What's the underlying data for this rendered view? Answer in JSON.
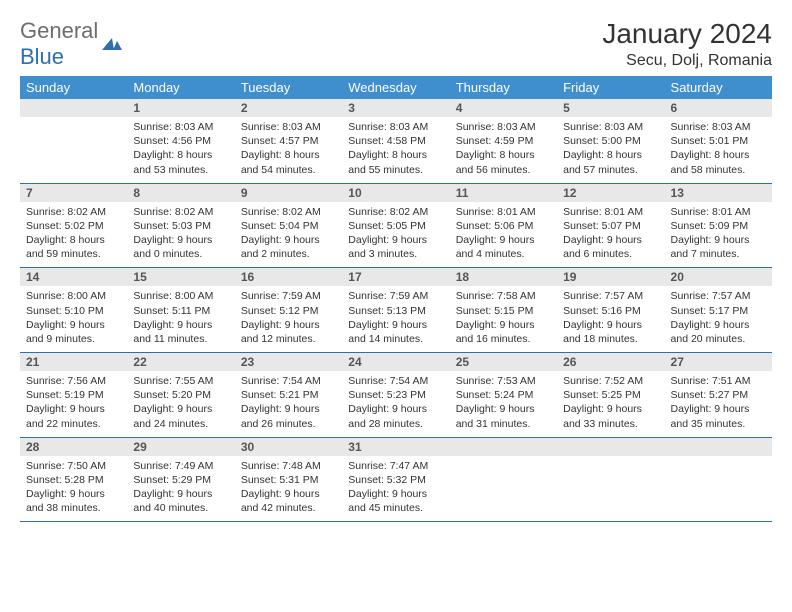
{
  "logo": {
    "text_part1": "General",
    "text_part2": "Blue",
    "text_color_1": "#6d6d6d",
    "text_color_2": "#2f6fb0",
    "icon_fill": "#2f6fb0"
  },
  "title": {
    "month_year": "January 2024",
    "location": "Secu, Dolj, Romania",
    "title_fontsize": 28,
    "title_color": "#333333",
    "location_fontsize": 16
  },
  "calendar": {
    "header_bg": "#3f8fcf",
    "header_fg": "#ffffff",
    "daynum_bg": "#e8e8e8",
    "daynum_fg": "#555555",
    "rule_color": "#2f6fb0",
    "body_fontsize": 10.5,
    "day_names": [
      "Sunday",
      "Monday",
      "Tuesday",
      "Wednesday",
      "Thursday",
      "Friday",
      "Saturday"
    ],
    "weeks": [
      [
        {
          "num": "",
          "lines": [
            "",
            "",
            "",
            ""
          ]
        },
        {
          "num": "1",
          "lines": [
            "Sunrise: 8:03 AM",
            "Sunset: 4:56 PM",
            "Daylight: 8 hours",
            "and 53 minutes."
          ]
        },
        {
          "num": "2",
          "lines": [
            "Sunrise: 8:03 AM",
            "Sunset: 4:57 PM",
            "Daylight: 8 hours",
            "and 54 minutes."
          ]
        },
        {
          "num": "3",
          "lines": [
            "Sunrise: 8:03 AM",
            "Sunset: 4:58 PM",
            "Daylight: 8 hours",
            "and 55 minutes."
          ]
        },
        {
          "num": "4",
          "lines": [
            "Sunrise: 8:03 AM",
            "Sunset: 4:59 PM",
            "Daylight: 8 hours",
            "and 56 minutes."
          ]
        },
        {
          "num": "5",
          "lines": [
            "Sunrise: 8:03 AM",
            "Sunset: 5:00 PM",
            "Daylight: 8 hours",
            "and 57 minutes."
          ]
        },
        {
          "num": "6",
          "lines": [
            "Sunrise: 8:03 AM",
            "Sunset: 5:01 PM",
            "Daylight: 8 hours",
            "and 58 minutes."
          ]
        }
      ],
      [
        {
          "num": "7",
          "lines": [
            "Sunrise: 8:02 AM",
            "Sunset: 5:02 PM",
            "Daylight: 8 hours",
            "and 59 minutes."
          ]
        },
        {
          "num": "8",
          "lines": [
            "Sunrise: 8:02 AM",
            "Sunset: 5:03 PM",
            "Daylight: 9 hours",
            "and 0 minutes."
          ]
        },
        {
          "num": "9",
          "lines": [
            "Sunrise: 8:02 AM",
            "Sunset: 5:04 PM",
            "Daylight: 9 hours",
            "and 2 minutes."
          ]
        },
        {
          "num": "10",
          "lines": [
            "Sunrise: 8:02 AM",
            "Sunset: 5:05 PM",
            "Daylight: 9 hours",
            "and 3 minutes."
          ]
        },
        {
          "num": "11",
          "lines": [
            "Sunrise: 8:01 AM",
            "Sunset: 5:06 PM",
            "Daylight: 9 hours",
            "and 4 minutes."
          ]
        },
        {
          "num": "12",
          "lines": [
            "Sunrise: 8:01 AM",
            "Sunset: 5:07 PM",
            "Daylight: 9 hours",
            "and 6 minutes."
          ]
        },
        {
          "num": "13",
          "lines": [
            "Sunrise: 8:01 AM",
            "Sunset: 5:09 PM",
            "Daylight: 9 hours",
            "and 7 minutes."
          ]
        }
      ],
      [
        {
          "num": "14",
          "lines": [
            "Sunrise: 8:00 AM",
            "Sunset: 5:10 PM",
            "Daylight: 9 hours",
            "and 9 minutes."
          ]
        },
        {
          "num": "15",
          "lines": [
            "Sunrise: 8:00 AM",
            "Sunset: 5:11 PM",
            "Daylight: 9 hours",
            "and 11 minutes."
          ]
        },
        {
          "num": "16",
          "lines": [
            "Sunrise: 7:59 AM",
            "Sunset: 5:12 PM",
            "Daylight: 9 hours",
            "and 12 minutes."
          ]
        },
        {
          "num": "17",
          "lines": [
            "Sunrise: 7:59 AM",
            "Sunset: 5:13 PM",
            "Daylight: 9 hours",
            "and 14 minutes."
          ]
        },
        {
          "num": "18",
          "lines": [
            "Sunrise: 7:58 AM",
            "Sunset: 5:15 PM",
            "Daylight: 9 hours",
            "and 16 minutes."
          ]
        },
        {
          "num": "19",
          "lines": [
            "Sunrise: 7:57 AM",
            "Sunset: 5:16 PM",
            "Daylight: 9 hours",
            "and 18 minutes."
          ]
        },
        {
          "num": "20",
          "lines": [
            "Sunrise: 7:57 AM",
            "Sunset: 5:17 PM",
            "Daylight: 9 hours",
            "and 20 minutes."
          ]
        }
      ],
      [
        {
          "num": "21",
          "lines": [
            "Sunrise: 7:56 AM",
            "Sunset: 5:19 PM",
            "Daylight: 9 hours",
            "and 22 minutes."
          ]
        },
        {
          "num": "22",
          "lines": [
            "Sunrise: 7:55 AM",
            "Sunset: 5:20 PM",
            "Daylight: 9 hours",
            "and 24 minutes."
          ]
        },
        {
          "num": "23",
          "lines": [
            "Sunrise: 7:54 AM",
            "Sunset: 5:21 PM",
            "Daylight: 9 hours",
            "and 26 minutes."
          ]
        },
        {
          "num": "24",
          "lines": [
            "Sunrise: 7:54 AM",
            "Sunset: 5:23 PM",
            "Daylight: 9 hours",
            "and 28 minutes."
          ]
        },
        {
          "num": "25",
          "lines": [
            "Sunrise: 7:53 AM",
            "Sunset: 5:24 PM",
            "Daylight: 9 hours",
            "and 31 minutes."
          ]
        },
        {
          "num": "26",
          "lines": [
            "Sunrise: 7:52 AM",
            "Sunset: 5:25 PM",
            "Daylight: 9 hours",
            "and 33 minutes."
          ]
        },
        {
          "num": "27",
          "lines": [
            "Sunrise: 7:51 AM",
            "Sunset: 5:27 PM",
            "Daylight: 9 hours",
            "and 35 minutes."
          ]
        }
      ],
      [
        {
          "num": "28",
          "lines": [
            "Sunrise: 7:50 AM",
            "Sunset: 5:28 PM",
            "Daylight: 9 hours",
            "and 38 minutes."
          ]
        },
        {
          "num": "29",
          "lines": [
            "Sunrise: 7:49 AM",
            "Sunset: 5:29 PM",
            "Daylight: 9 hours",
            "and 40 minutes."
          ]
        },
        {
          "num": "30",
          "lines": [
            "Sunrise: 7:48 AM",
            "Sunset: 5:31 PM",
            "Daylight: 9 hours",
            "and 42 minutes."
          ]
        },
        {
          "num": "31",
          "lines": [
            "Sunrise: 7:47 AM",
            "Sunset: 5:32 PM",
            "Daylight: 9 hours",
            "and 45 minutes."
          ]
        },
        {
          "num": "",
          "lines": [
            "",
            "",
            "",
            ""
          ]
        },
        {
          "num": "",
          "lines": [
            "",
            "",
            "",
            ""
          ]
        },
        {
          "num": "",
          "lines": [
            "",
            "",
            "",
            ""
          ]
        }
      ]
    ]
  }
}
